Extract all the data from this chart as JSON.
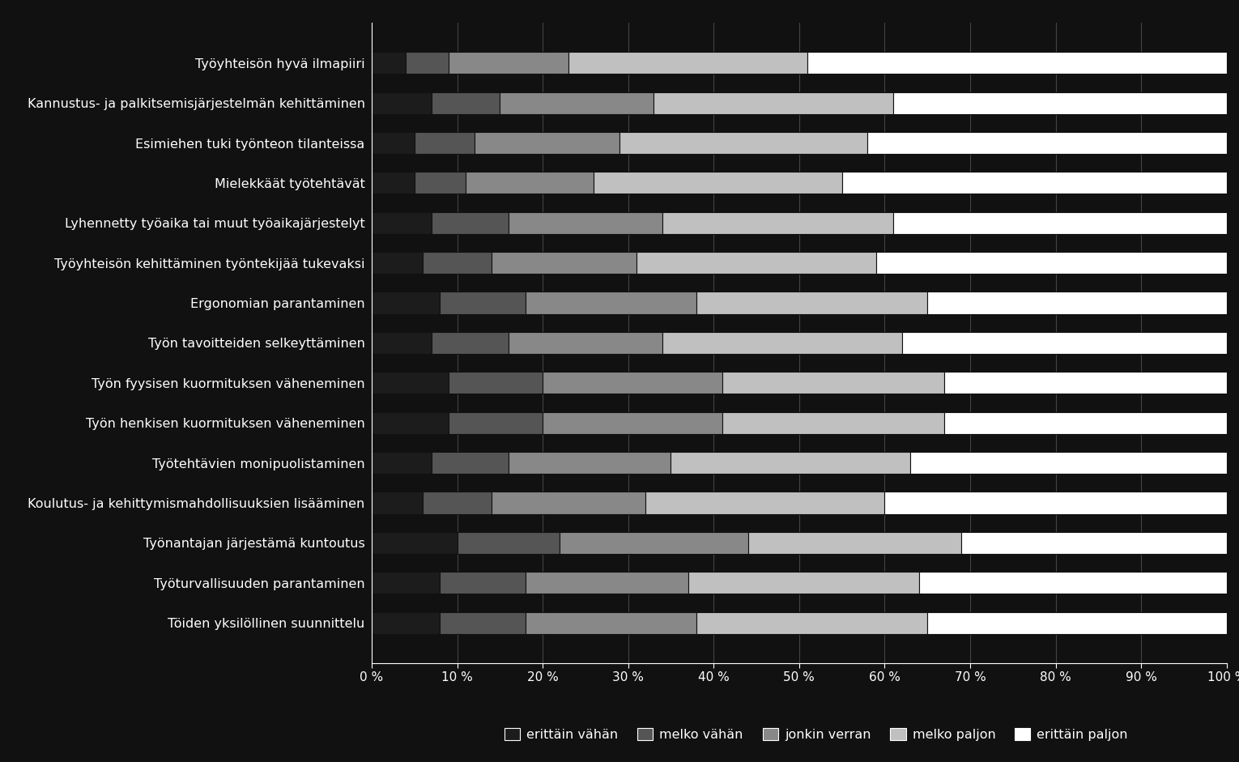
{
  "categories": [
    "Työyhteisön hyvä ilmapiiri",
    "Kannustus- ja palkitsemisjärjestelmän kehittäminen",
    "Esimiehen tuki työnteon tilanteissa",
    "Mielekkäät työtehtävät",
    "Lyhennetty työaika tai muut työaikajärjestelyt",
    "Työyhteisön kehittäminen työntekijää tukevaksi",
    "Ergonomian parantaminen",
    "Työn tavoitteiden selkeyttäminen",
    "Työn fyysisen kuormituksen väheneminen",
    "Työn henkisen kuormituksen väheneminen",
    "Työtehtävien monipuolistaminen",
    "Koulutus- ja kehittymismahdollisuuksien lisääminen",
    "Työnantajan järjestämä kuntoutus",
    "Työturvallisuuden parantaminen",
    "Töiden yksilöllinen suunnittelu"
  ],
  "series": [
    {
      "label": "erittäin vähän",
      "color": "#1c1c1c",
      "values": [
        4,
        7,
        5,
        5,
        7,
        6,
        8,
        7,
        9,
        9,
        7,
        6,
        10,
        8,
        8
      ]
    },
    {
      "label": "melko vähän",
      "color": "#555555",
      "values": [
        5,
        8,
        7,
        6,
        9,
        8,
        10,
        9,
        11,
        11,
        9,
        8,
        12,
        10,
        10
      ]
    },
    {
      "label": "jonkin verran",
      "color": "#888888",
      "values": [
        14,
        18,
        17,
        15,
        18,
        17,
        20,
        18,
        21,
        21,
        19,
        18,
        22,
        19,
        20
      ]
    },
    {
      "label": "melko paljon",
      "color": "#c0c0c0",
      "values": [
        28,
        28,
        29,
        29,
        27,
        28,
        27,
        28,
        26,
        26,
        28,
        28,
        25,
        27,
        27
      ]
    },
    {
      "label": "erittäin paljon",
      "color": "#ffffff",
      "values": [
        49,
        39,
        42,
        45,
        39,
        41,
        35,
        38,
        33,
        33,
        37,
        40,
        31,
        36,
        35
      ]
    }
  ],
  "background_color": "#111111",
  "plot_bg_color": "#111111",
  "text_color": "#ffffff",
  "grid_color": "#444444",
  "bar_height": 0.55,
  "legend_edge_color": "#ffffff"
}
